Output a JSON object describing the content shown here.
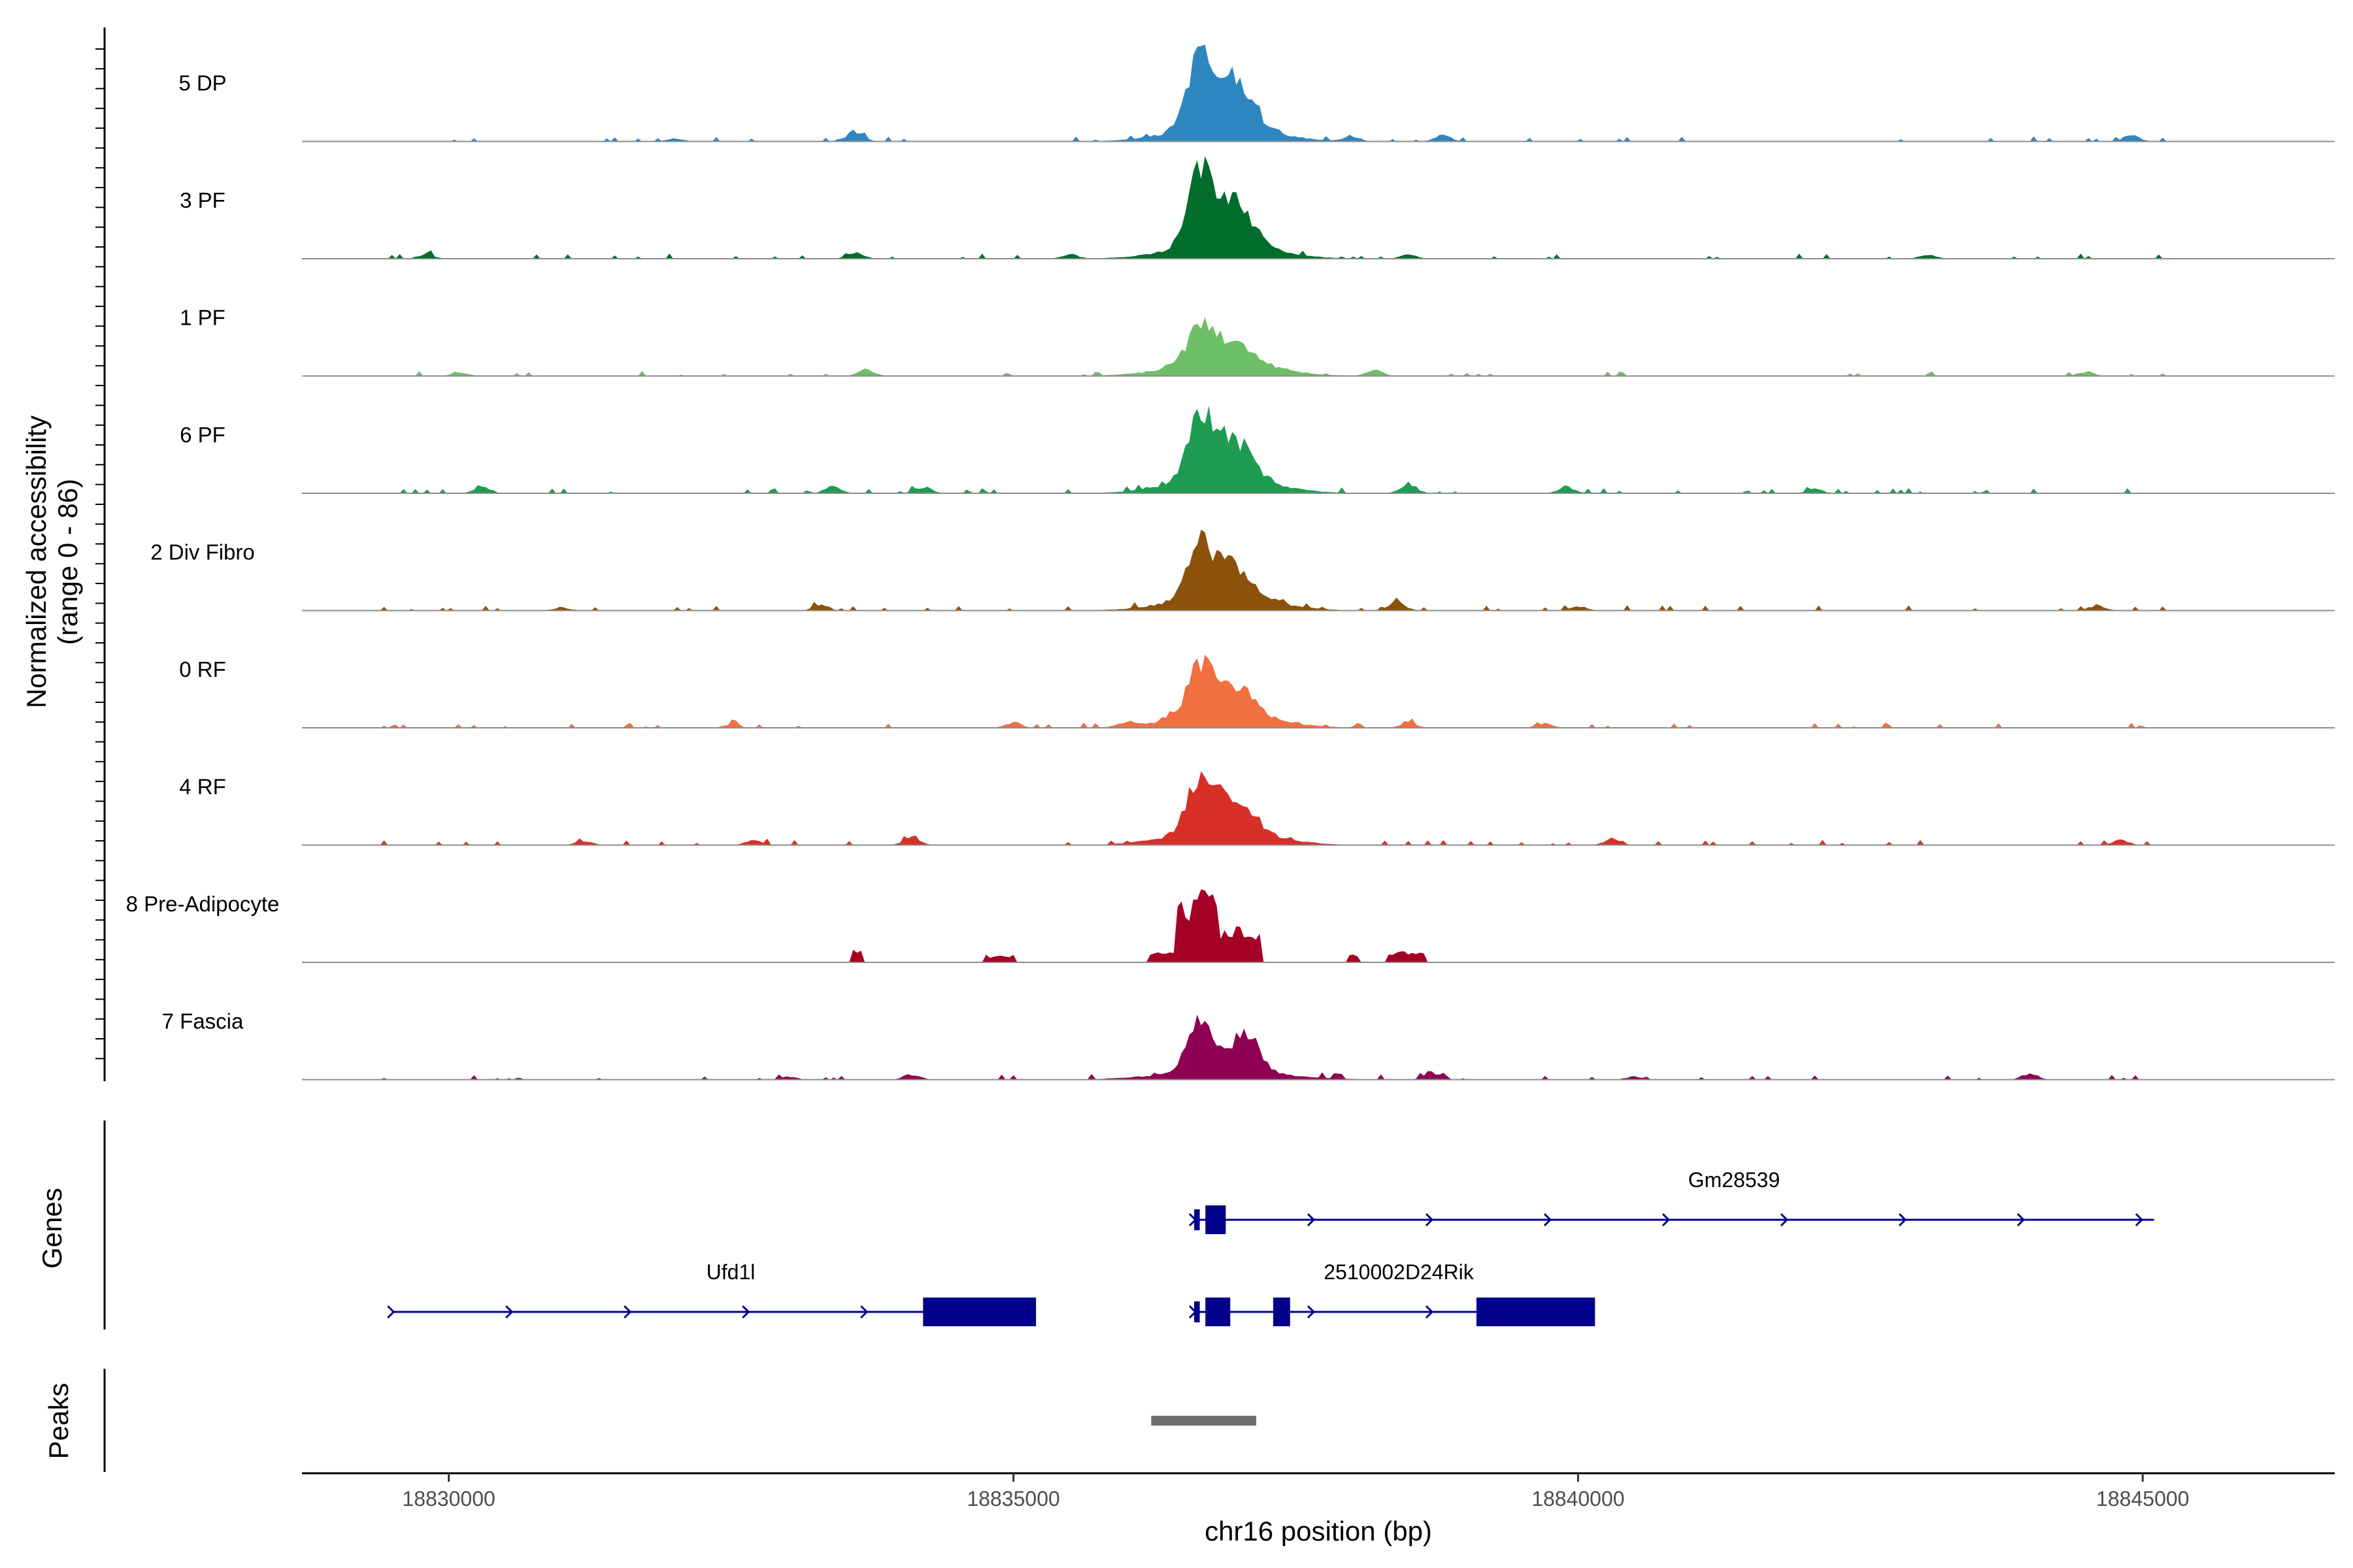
{
  "chart_data": {
    "type": "area",
    "title": "",
    "ylabel": "Normalized accessibility\n(range 0 - 86)",
    "ylabel_lines": [
      "Normalized accessibility",
      "(range 0 - 86)"
    ],
    "xlabel": "chr16 position (bp)",
    "xlim": [
      18828700,
      18846700
    ],
    "ylim": [
      0,
      86
    ],
    "x_ticks": [
      18830000,
      18835000,
      18840000,
      18845000
    ],
    "x_tick_labels": [
      "18830000",
      "18835000",
      "18840000",
      "18845000"
    ],
    "series": [
      {
        "name": "5 DP",
        "color": "#2E86C1",
        "peak_height": 70,
        "bg": 0.09,
        "shape": "std",
        "extras": [
          [
            18833600,
            10
          ],
          [
            18838800,
            6
          ],
          [
            18844900,
            6
          ],
          [
            18832000,
            3
          ],
          [
            18838000,
            4
          ]
        ]
      },
      {
        "name": "3 PF",
        "color": "#006D2C",
        "peak_height": 70,
        "bg": 0.09,
        "shape": "std",
        "extras": [
          [
            18833600,
            6
          ],
          [
            18829800,
            4
          ],
          [
            18835500,
            4
          ],
          [
            18838500,
            4
          ],
          [
            18843100,
            4
          ]
        ]
      },
      {
        "name": "1 PF",
        "color": "#6DC067",
        "peak_height": 34,
        "bg": 0.08,
        "shape": "std",
        "extras": [
          [
            18833700,
            6
          ],
          [
            18838200,
            5
          ],
          [
            18844500,
            4
          ],
          [
            18830100,
            3
          ]
        ]
      },
      {
        "name": "6 PF",
        "color": "#1E9C52",
        "peak_height": 62,
        "bg": 0.12,
        "shape": "std",
        "extras": [
          [
            18830300,
            6
          ],
          [
            18833400,
            7
          ],
          [
            18838500,
            9
          ],
          [
            18839900,
            6
          ],
          [
            18834200,
            6
          ],
          [
            18842100,
            4
          ]
        ]
      },
      {
        "name": "2 Div Fibro",
        "color": "#8C510A",
        "peak_height": 48,
        "bg": 0.1,
        "shape": "std",
        "extras": [
          [
            18838400,
            8
          ],
          [
            18833300,
            5
          ],
          [
            18844600,
            5
          ],
          [
            18831000,
            3
          ],
          [
            18840000,
            4
          ]
        ]
      },
      {
        "name": "0 RF",
        "color": "#F07040",
        "peak_height": 46,
        "bg": 0.1,
        "shape": "std",
        "extras": [
          [
            18835000,
            5
          ],
          [
            18838500,
            5
          ],
          [
            18839700,
            4
          ],
          [
            18836000,
            4
          ],
          [
            18832500,
            3
          ]
        ]
      },
      {
        "name": "4 RF",
        "color": "#D73027",
        "peak_height": 52,
        "bg": 0.1,
        "shape": "std",
        "extras": [
          [
            18834100,
            8
          ],
          [
            18832700,
            5
          ],
          [
            18840300,
            6
          ],
          [
            18844800,
            5
          ],
          [
            18831200,
            4
          ]
        ]
      },
      {
        "name": "8 Pre-Adipocyte",
        "color": "#A50026",
        "peak_height": 70,
        "bg": 0,
        "shape": "sparse",
        "extras": []
      },
      {
        "name": "7 Fascia",
        "color": "#8E0152",
        "peak_height": 46,
        "bg": 0.11,
        "shape": "fascia",
        "extras": [
          [
            18834100,
            5
          ],
          [
            18838700,
            7
          ],
          [
            18844000,
            6
          ],
          [
            18833000,
            3
          ],
          [
            18840500,
            3
          ]
        ]
      }
    ],
    "genes": [
      {
        "name": "Gm28539",
        "start": 18836600,
        "end": 18845100,
        "strand": "+",
        "exons": [
          [
            18836600,
            18836650
          ],
          [
            18836700,
            18836880
          ]
        ]
      },
      {
        "name": "Ufd1l",
        "start": 18829500,
        "end": 18835200,
        "strand": "+",
        "exons": [
          [
            18834200,
            18835200
          ]
        ]
      },
      {
        "name": "2510002D24Rik",
        "start": 18836600,
        "end": 18840150,
        "strand": "+",
        "exons": [
          [
            18836600,
            18836650
          ],
          [
            18836700,
            18836920
          ],
          [
            18837300,
            18837450
          ],
          [
            18839100,
            18840150
          ]
        ]
      }
    ],
    "gene_track_label": "Genes",
    "peaks": [
      [
        18836220,
        18837150
      ]
    ],
    "peak_track_label": "Peaks",
    "gene_color": "#00008B",
    "peak_color": "#6E6E6E"
  }
}
